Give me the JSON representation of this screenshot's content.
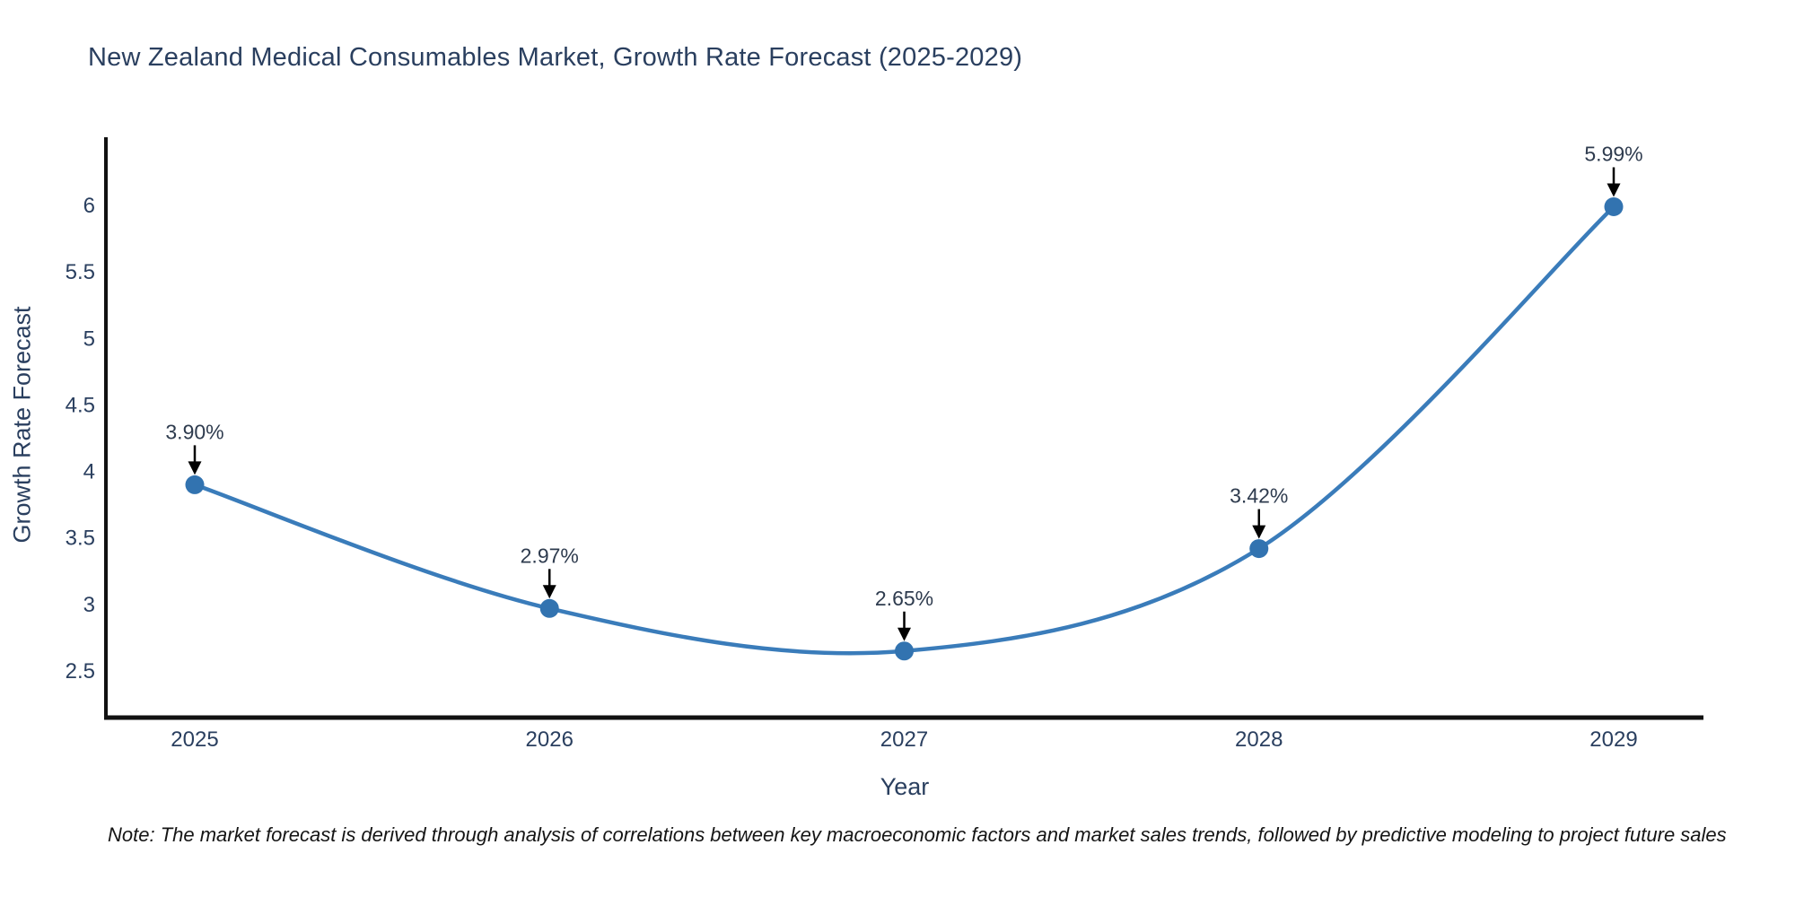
{
  "title": "New Zealand Medical Consumables Market, Growth Rate Forecast (2025-2029)",
  "note": "Note: The market forecast is derived through analysis of correlations between key macroeconomic factors and market sales trends, followed by predictive modeling to project future sales",
  "chart_data": {
    "type": "line",
    "line_shape": "spline",
    "title": "New Zealand Medical Consumables Market, Growth Rate Forecast (2025-2029)",
    "xlabel": "Year",
    "ylabel": "Growth Rate Forecast",
    "x": [
      2025,
      2026,
      2027,
      2028,
      2029
    ],
    "values": [
      3.9,
      2.97,
      2.65,
      3.42,
      5.99
    ],
    "point_labels": [
      "3.90%",
      "2.97%",
      "2.65%",
      "3.42%",
      "5.99%"
    ],
    "xticks": [
      "2025",
      "2026",
      "2027",
      "2028",
      "2029"
    ],
    "yticks": [
      2.5,
      3,
      3.5,
      4,
      4.5,
      5,
      5.5,
      6
    ],
    "ytick_labels": [
      "2.5",
      "3",
      "3.5",
      "4",
      "4.5",
      "5",
      "5.5",
      "6"
    ],
    "xlim": [
      2024.75,
      2029.26
    ],
    "ylim": [
      2.15,
      6.51
    ],
    "grid": false,
    "legend": "none",
    "markers": true,
    "annotations_have_arrows": true,
    "colors": {
      "line": "#3a7cba",
      "marker": "#3273b0",
      "axis": "#111111",
      "tick_text": "#2a3f5f",
      "axis_title_text": "#2a3f5f",
      "annotation_text": "#2e3b4e",
      "arrow": "#000000",
      "background": "#ffffff"
    }
  }
}
